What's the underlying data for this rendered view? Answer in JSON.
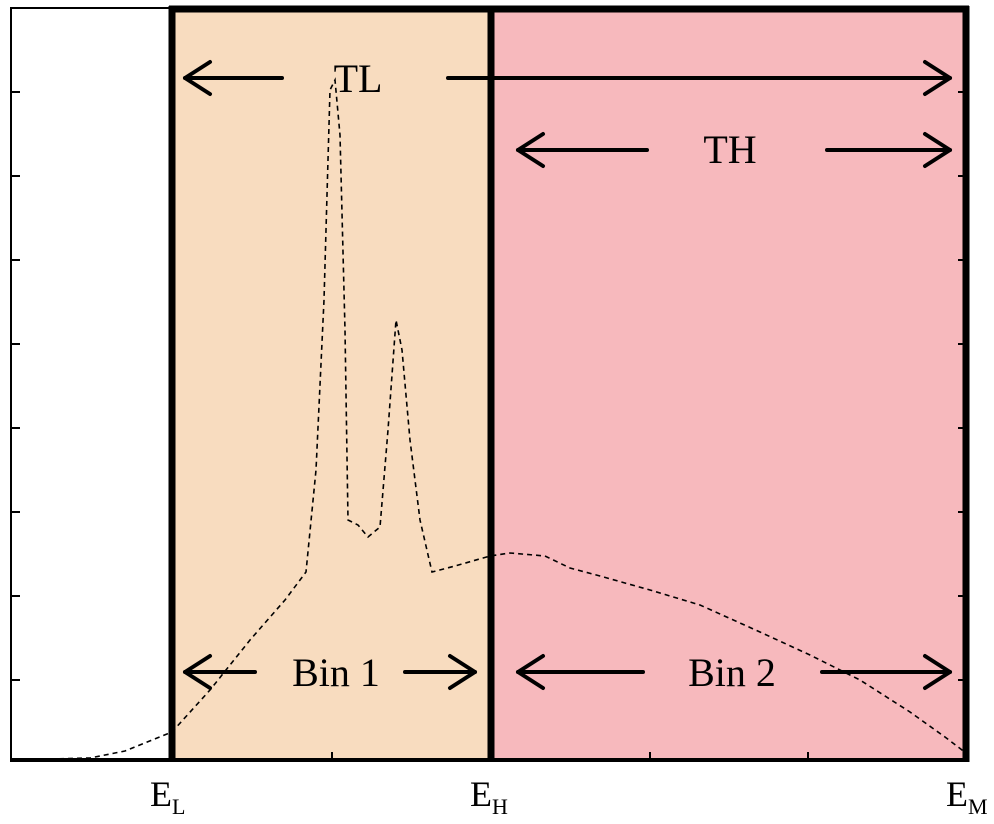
{
  "colors": {
    "bin1_fill": "#f8dcbf",
    "bin2_fill": "#f7b9bd",
    "frame": "#000000",
    "spectrum": "#000000"
  },
  "labels": {
    "tl": "TL",
    "th": "TH",
    "bin1": "Bin 1",
    "bin2": "Bin 2"
  },
  "axis": {
    "el_main": "E",
    "el_sub": "L",
    "eh_main": "E",
    "eh_sub": "H",
    "em_main": "E",
    "em_sub": "M"
  },
  "spectrum_curve": {
    "style": "dashed",
    "shape": "low baseline rising after E_L, two sharp peaks in Bin 1, broad plateau across E_H, decaying toward E_M"
  }
}
